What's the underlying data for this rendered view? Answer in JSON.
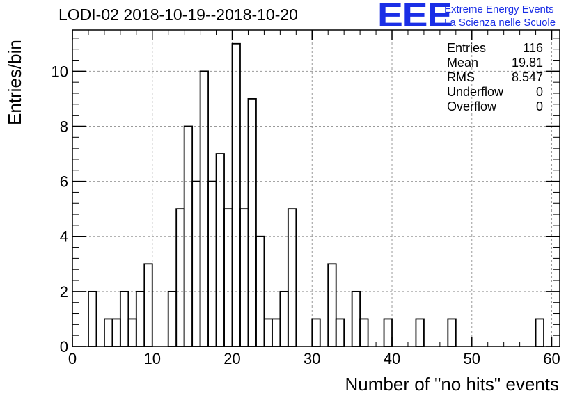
{
  "title": "LODI-02 2018-10-19--2018-10-20",
  "logo": {
    "mark": "EEE",
    "line1": "Extreme Energy Events",
    "line2": "La Scienza nelle Scuole",
    "color": "#1a2ee6"
  },
  "stats": [
    {
      "label": "Entries",
      "value": "116"
    },
    {
      "label": "Mean",
      "value": "19.81"
    },
    {
      "label": "RMS",
      "value": "8.547"
    },
    {
      "label": "Underflow",
      "value": "0"
    },
    {
      "label": "Overflow",
      "value": "0"
    }
  ],
  "chart_data": {
    "type": "bar",
    "histogram": true,
    "title": "LODI-02 2018-10-19--2018-10-20",
    "xlabel": "Number of \"no hits\" events",
    "ylabel": "Entries/bin",
    "xlim": [
      0,
      61
    ],
    "ylim": [
      0,
      11.5
    ],
    "bin_width": 1,
    "grid": true,
    "x_ticks": [
      0,
      10,
      20,
      30,
      40,
      50,
      60
    ],
    "y_ticks": [
      0,
      2,
      4,
      6,
      8,
      10
    ],
    "bins": [
      0,
      1,
      2,
      3,
      4,
      5,
      6,
      7,
      8,
      9,
      10,
      11,
      12,
      13,
      14,
      15,
      16,
      17,
      18,
      19,
      20,
      21,
      22,
      23,
      24,
      25,
      26,
      27,
      28,
      29,
      30,
      31,
      32,
      33,
      34,
      35,
      36,
      37,
      38,
      39,
      40,
      41,
      42,
      43,
      44,
      45,
      46,
      47,
      48,
      49,
      50,
      51,
      52,
      53,
      54,
      55,
      56,
      57,
      58,
      59,
      60
    ],
    "values": [
      0,
      0,
      2,
      0,
      1,
      1,
      2,
      1,
      2,
      3,
      0,
      0,
      2,
      5,
      8,
      6,
      10,
      6,
      7,
      5,
      11,
      5,
      9,
      4,
      1,
      1,
      2,
      5,
      0,
      0,
      1,
      0,
      3,
      1,
      0,
      2,
      1,
      0,
      0,
      1,
      0,
      0,
      0,
      1,
      0,
      0,
      0,
      1,
      0,
      0,
      0,
      0,
      0,
      0,
      0,
      0,
      0,
      0,
      1,
      0,
      0
    ]
  }
}
